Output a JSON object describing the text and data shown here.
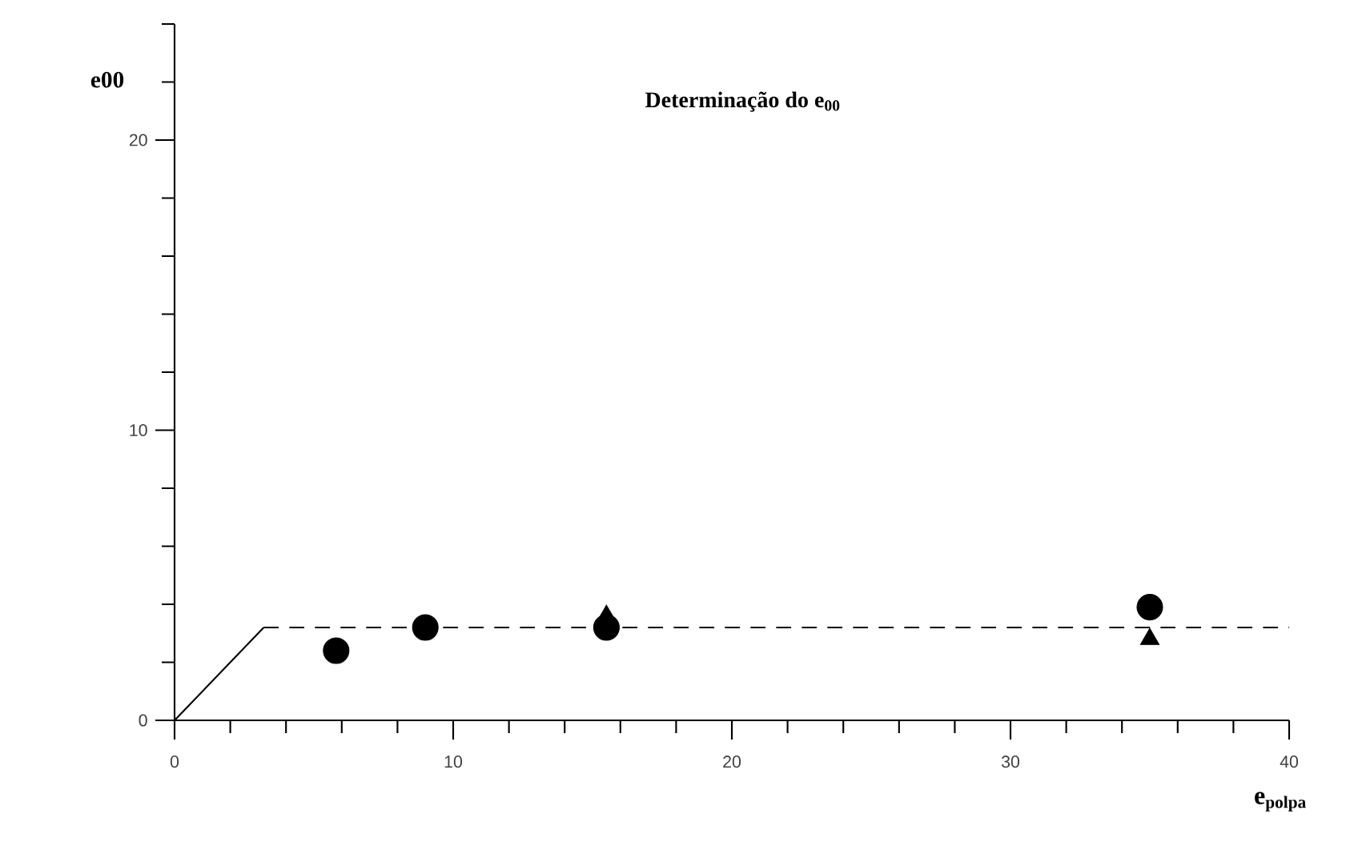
{
  "chart_data": {
    "type": "scatter",
    "title": "Determinação do e$_{00}$",
    "xlabel": "e$_{polpa}$",
    "ylabel": "e00",
    "xlim": [
      0,
      40
    ],
    "ylim": [
      0,
      24
    ],
    "xticks": [
      0,
      {
        "value": 2,
        "label": null
      },
      {
        "value": 4,
        "label": null
      },
      {
        "value": 6,
        "label": null
      },
      {
        "value": 8,
        "label": null
      },
      10,
      {
        "value": 12,
        "label": null
      },
      {
        "value": 14,
        "label": null
      },
      {
        "value": 16,
        "label": null
      },
      {
        "value": 18,
        "label": null
      },
      20,
      {
        "value": 22,
        "label": null
      },
      {
        "value": 24,
        "label": null
      },
      {
        "value": 26,
        "label": null
      },
      {
        "value": 28,
        "label": null
      },
      30,
      {
        "value": 32,
        "label": null
      },
      {
        "value": 34,
        "label": null
      },
      {
        "value": 36,
        "label": null
      },
      {
        "value": 38,
        "label": null
      },
      40
    ],
    "yticks": [
      0,
      {
        "value": 2,
        "label": null
      },
      {
        "value": 4,
        "label": null
      },
      {
        "value": 6,
        "label": null
      },
      {
        "value": 8,
        "label": null
      },
      10,
      {
        "value": 12,
        "label": null
      },
      {
        "value": 14,
        "label": null
      },
      {
        "value": 16,
        "label": null
      },
      {
        "value": 18,
        "label": null
      },
      20,
      {
        "value": 22,
        "label": null
      },
      {
        "value": 24,
        "label": null
      }
    ],
    "series": [
      {
        "type": "line",
        "color": "#000000",
        "line_style": "solid",
        "marker": "none",
        "x": [
          0,
          3.2
        ],
        "values": [
          0,
          3.2
        ]
      },
      {
        "type": "line",
        "color": "#000000",
        "line_style": "dashed",
        "marker": "none",
        "x": [
          3.2,
          40
        ],
        "values": [
          3.2,
          3.2
        ]
      },
      {
        "color": "#000000",
        "marker": "circle",
        "x": [
          5.8,
          9,
          15.5,
          35
        ],
        "values": [
          2.4,
          3.2,
          3.2,
          3.9
        ]
      },
      {
        "color": "#000000",
        "marker": "triangle",
        "x": [
          15.5,
          35
        ],
        "values": [
          3.6,
          2.8
        ]
      }
    ]
  }
}
